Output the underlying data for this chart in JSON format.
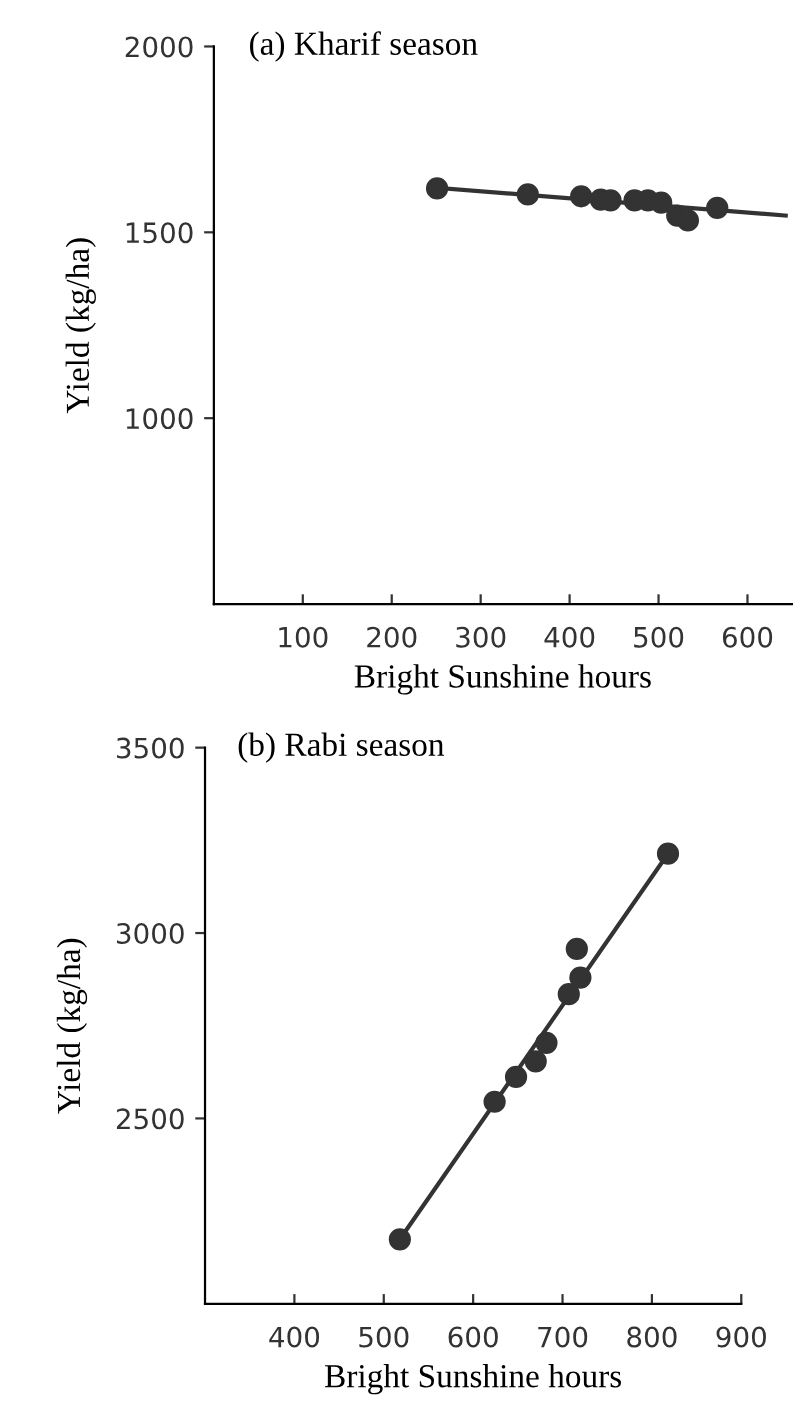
{
  "chart_data": [
    {
      "type": "scatter",
      "title": "(a) Kharif season",
      "xlabel": "Bright Sunshine hours",
      "ylabel": "Yield (kg/ha)",
      "xlim": [
        0,
        650
      ],
      "ylim": [
        500,
        2000
      ],
      "xticks": [
        100,
        200,
        300,
        400,
        500,
        600
      ],
      "yticks": [
        1000,
        1500,
        2000
      ],
      "grid": false,
      "legend": false,
      "series": [
        {
          "color": "#333333",
          "marker": "circle",
          "x": [
            251,
            353,
            413,
            435,
            446,
            473,
            488,
            503,
            521,
            533,
            566
          ],
          "values": [
            1618,
            1602,
            1597,
            1588,
            1586,
            1586,
            1586,
            1580,
            1545,
            1532,
            1566
          ]
        },
        {
          "type": "line",
          "color": "#333333",
          "line_style": "solid",
          "x": [
            251,
            643
          ],
          "values": [
            1620,
            1545
          ]
        }
      ]
    },
    {
      "type": "scatter",
      "title": "(b) Rabi season",
      "xlabel": "Bright Sunshine hours",
      "ylabel": "Yield (kg/ha)",
      "xlim": [
        300,
        900
      ],
      "ylim": [
        2000,
        3500
      ],
      "xticks": [
        400,
        500,
        600,
        700,
        800,
        900
      ],
      "yticks": [
        2500,
        3000,
        3500
      ],
      "grid": false,
      "legend": false,
      "series": [
        {
          "color": "#333333",
          "marker": "circle",
          "x": [
            518,
            624,
            648,
            670,
            682,
            707,
            716,
            720,
            818
          ],
          "values": [
            2174,
            2545,
            2612,
            2654,
            2704,
            2835,
            2957,
            2880,
            3214
          ]
        },
        {
          "type": "line",
          "color": "#333333",
          "line_style": "solid",
          "x": [
            518,
            818
          ],
          "values": [
            2174,
            3214
          ]
        }
      ]
    }
  ]
}
